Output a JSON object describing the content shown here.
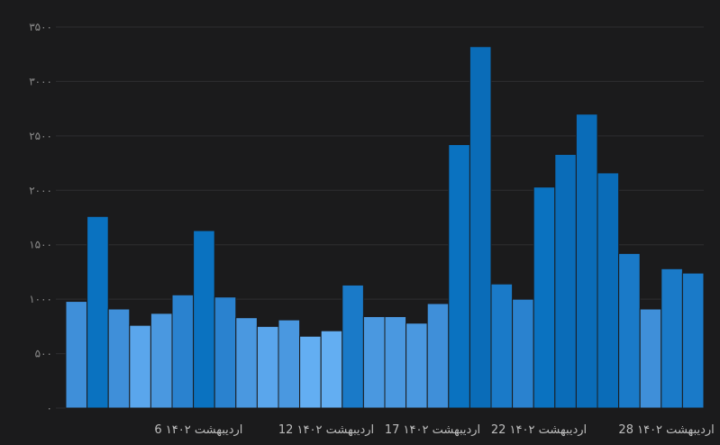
{
  "chart_data": {
    "type": "bar",
    "title": "",
    "xlabel": "",
    "ylabel": "",
    "ylim": [
      0,
      3500
    ],
    "y_ticks": [
      "۰",
      "۵۰۰",
      "۱۰۰۰",
      "۱۵۰۰",
      "۲۰۰۰",
      "۲۵۰۰",
      "۳۰۰۰",
      "۳۵۰۰"
    ],
    "x_ticks": [
      {
        "label": "6 اردیبهشت ۱۴۰۲",
        "index": 6
      },
      {
        "label": "12 اردیبهشت ۱۴۰۲",
        "index": 12
      },
      {
        "label": "17 اردیبهشت ۱۴۰۲",
        "index": 17
      },
      {
        "label": "22 اردیبهشت ۱۴۰۲",
        "index": 22
      },
      {
        "label": "28 اردیبهشت ۱۴۰۲",
        "index": 28
      }
    ],
    "grid": true,
    "values": [
      980,
      1760,
      910,
      760,
      870,
      1040,
      1630,
      1020,
      830,
      750,
      810,
      660,
      710,
      1130,
      840,
      840,
      780,
      960,
      2420,
      3320,
      1140,
      1000,
      2030,
      2330,
      2700,
      2160,
      1420,
      910,
      1280,
      1240
    ],
    "colors": [
      "#3f8fd9",
      "#0a72c0",
      "#3f8fd9",
      "#5aa6ec",
      "#4a98e0",
      "#2a82cf",
      "#0a72c0",
      "#2a82cf",
      "#4a98e0",
      "#5aa6ec",
      "#4a98e0",
      "#63aef2",
      "#63aef2",
      "#1a7ac8",
      "#4a98e0",
      "#4a98e0",
      "#4a98e0",
      "#3f8fd9",
      "#0a72c0",
      "#0a6cb8",
      "#1a7ac8",
      "#2a82cf",
      "#0a72c0",
      "#0a6cb8",
      "#0a6cb8",
      "#0a6cb8",
      "#1a7ac8",
      "#3f8fd9",
      "#1a7ac8",
      "#1a7ac8"
    ],
    "colors_meta": {
      "background": "#1b1b1c",
      "grid": "#2e2e30"
    }
  }
}
